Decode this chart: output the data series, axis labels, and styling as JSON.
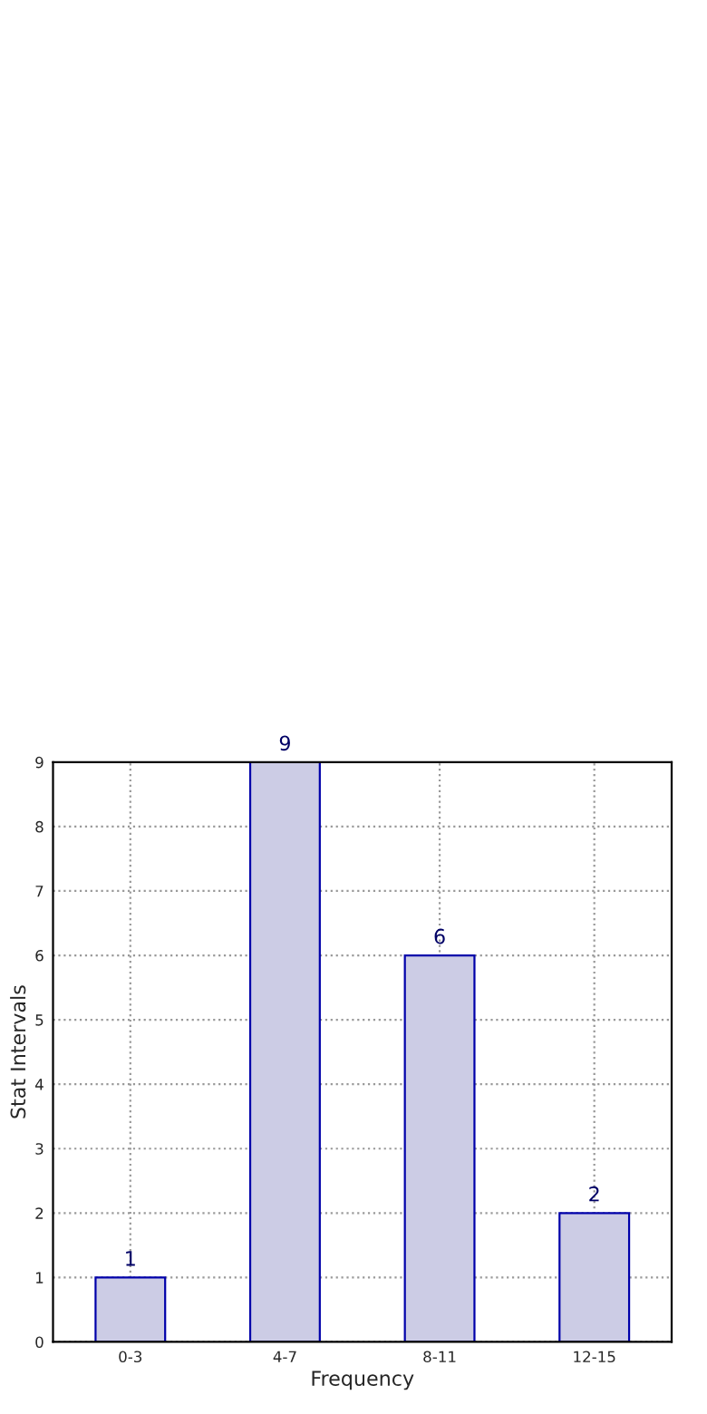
{
  "chart_data": {
    "type": "bar",
    "xlabel": "Frequency",
    "ylabel": "Stat Intervals",
    "categories": [
      "0-3",
      "4-7",
      "8-11",
      "12-15"
    ],
    "values": [
      1,
      9,
      6,
      2
    ],
    "color": "#cccce5",
    "ylim": [
      0,
      9
    ],
    "yticks": [
      0,
      1,
      2,
      3,
      4,
      5,
      6,
      7,
      8,
      9
    ],
    "grid": true,
    "data_labels": true
  }
}
